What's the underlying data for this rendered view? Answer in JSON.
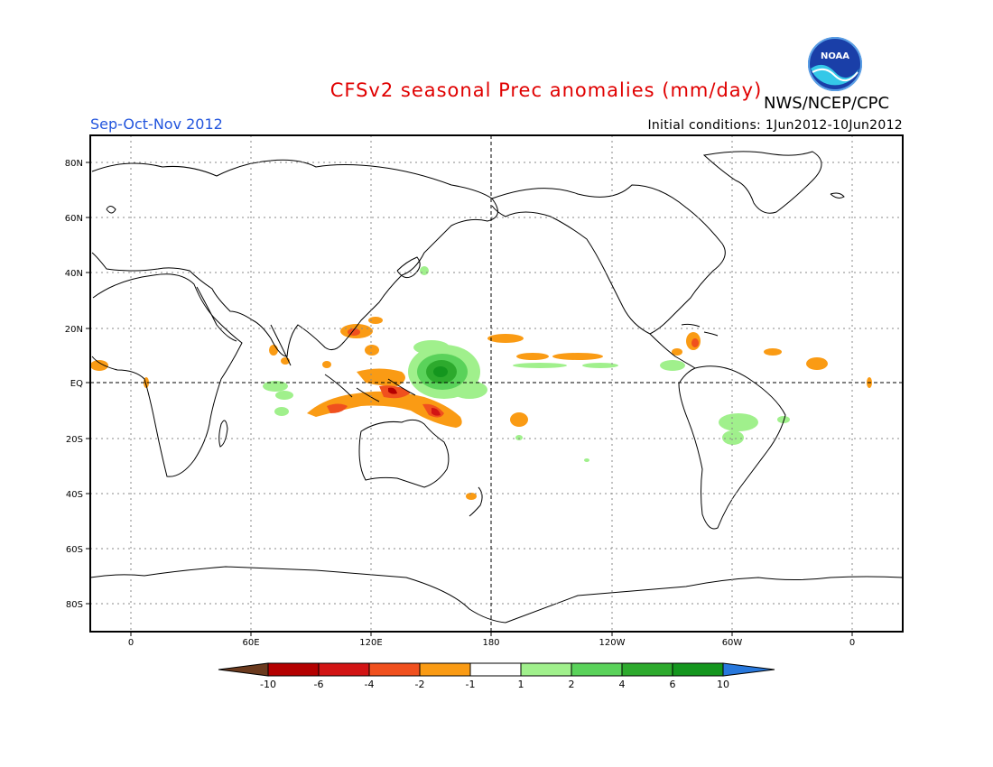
{
  "header": {
    "title": "CFSv2 seasonal Prec anomalies (mm/day)",
    "org": "NWS/NCEP/CPC",
    "season": "Sep-Oct-Nov 2012",
    "initial_conditions": "Initial conditions: 1Jun2012-10Jun2012",
    "logo_text": "NOAA"
  },
  "map": {
    "lat_ticks": [
      "80N",
      "60N",
      "40N",
      "20N",
      "EQ",
      "20S",
      "40S",
      "60S",
      "80S"
    ],
    "lon_ticks": [
      "0",
      "60E",
      "120E",
      "180",
      "120W",
      "60W",
      "0"
    ]
  },
  "colorbar": {
    "labels": [
      "-10",
      "-6",
      "-4",
      "-2",
      "-1",
      "1",
      "2",
      "4",
      "6",
      "10"
    ],
    "colors": {
      "below_-10": "#6b3a1e",
      "-10_-6": "#b40000",
      "-6_-4": "#d21414",
      "-4_-2": "#f0501e",
      "-2_-1": "#fa9b14",
      "-1_1": "#ffffff",
      "1_2": "#a0f08c",
      "2_4": "#5ad25a",
      "4_6": "#2daa2d",
      "6_10": "#14961e",
      "above_10": "#2878dc"
    }
  }
}
